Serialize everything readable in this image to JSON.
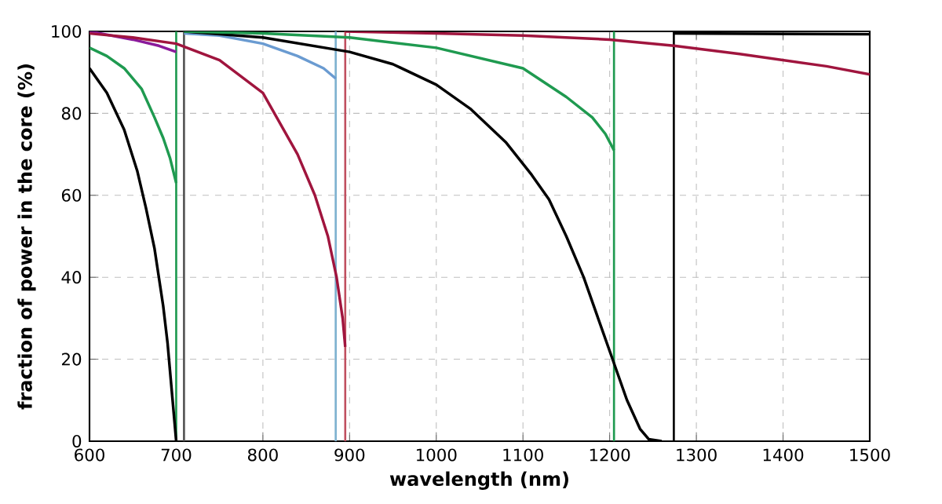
{
  "chart_data": {
    "type": "line",
    "xlabel": "wavelength (nm)",
    "ylabel": "fraction of power in the core (%)",
    "xlim": [
      600,
      1500
    ],
    "ylim": [
      0,
      100
    ],
    "xticks": [
      600,
      700,
      800,
      900,
      1000,
      1100,
      1200,
      1300,
      1400,
      1500
    ],
    "yticks": [
      0,
      20,
      40,
      60,
      80,
      100
    ],
    "grid": true,
    "line_style": "solid",
    "series": [
      {
        "color": "#000000",
        "x": [
          600,
          620,
          640,
          655,
          665,
          675,
          685,
          690,
          695,
          700
        ],
        "values": [
          91,
          85,
          76,
          66,
          57,
          47,
          33,
          24,
          12,
          0
        ]
      },
      {
        "color": "#1f9a50",
        "x": [
          600,
          620,
          640,
          660,
          675,
          685,
          693,
          700
        ],
        "values": [
          96,
          94,
          91,
          86,
          79,
          74,
          69,
          63
        ]
      },
      {
        "color": "#8b1a9b",
        "x": [
          600,
          650,
          680,
          700
        ],
        "values": [
          100,
          98,
          96.5,
          95
        ]
      },
      {
        "color": "#6a9bd1",
        "x": [
          709,
          750,
          800,
          840,
          870,
          884
        ],
        "values": [
          99.5,
          99,
          97,
          94,
          91,
          88.5
        ]
      },
      {
        "color": "#a0153e",
        "x": [
          600,
          650,
          700,
          750,
          800,
          840,
          860,
          875,
          885,
          892,
          895
        ],
        "values": [
          99.5,
          98.5,
          97,
          93,
          85,
          70,
          60,
          50,
          40,
          30,
          23
        ]
      },
      {
        "color": "#000000",
        "x": [
          709,
          800,
          900,
          950,
          1000,
          1040,
          1080,
          1110,
          1130,
          1150,
          1170,
          1190,
          1205,
          1220,
          1235,
          1245,
          1260
        ],
        "values": [
          100,
          98.5,
          95,
          92,
          87,
          81,
          73,
          65,
          59,
          50,
          40,
          28,
          19,
          10,
          3,
          0.5,
          0
        ]
      },
      {
        "color": "#1f9a50",
        "x": [
          709,
          800,
          900,
          1000,
          1050,
          1100,
          1150,
          1180,
          1195,
          1205
        ],
        "values": [
          100,
          99.5,
          98.5,
          96,
          93.5,
          91,
          84,
          79,
          75,
          71
        ]
      },
      {
        "color": "#a0153e",
        "x": [
          895,
          1000,
          1100,
          1200,
          1274,
          1350,
          1400,
          1450,
          1500
        ],
        "values": [
          100,
          99.5,
          99,
          98,
          96.5,
          94.5,
          93,
          91.5,
          89.5
        ]
      },
      {
        "color": "#000000",
        "x": [
          1274,
          1500
        ],
        "values": [
          99.5,
          99.3
        ]
      }
    ],
    "ref_lines": [
      {
        "axis": "x",
        "value": 700,
        "color": "#1f9a50"
      },
      {
        "axis": "x",
        "value": 709,
        "color": "#555555"
      },
      {
        "axis": "x",
        "value": 884,
        "color": "#7fb2d0"
      },
      {
        "axis": "x",
        "value": 895,
        "color": "#c05060"
      },
      {
        "axis": "x",
        "value": 1205,
        "color": "#1f9a50"
      },
      {
        "axis": "x",
        "value": 1274,
        "color": "#000000"
      }
    ]
  }
}
